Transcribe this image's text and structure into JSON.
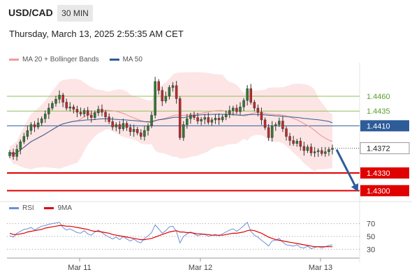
{
  "header": {
    "symbol": "USD/CAD",
    "timeframe": "30 MIN"
  },
  "datetime": "Thursday, March 13, 2025 2:55:35 AM CET",
  "legend_main": [
    {
      "label": "MA 20 + Bollinger Bands",
      "color": "#f19c9c"
    },
    {
      "label": "MA 50",
      "color": "#2e5c99"
    }
  ],
  "legend_rsi": [
    {
      "label": "RSI",
      "color": "#6a8fd8"
    },
    {
      "label": "9MA",
      "color": "#e00000"
    }
  ],
  "colors": {
    "bull": "#2e7d32",
    "bear": "#c62828",
    "resistance": "#8fbf5a",
    "pivot": "#2e5c99",
    "support": "#e00000",
    "arrow": "#2e5c99"
  },
  "chart_data": [
    {
      "type": "candlestick",
      "x_ticks": [
        "Mar 11",
        "Mar 12",
        "Mar 13"
      ],
      "ylim": [
        1.429,
        1.4505
      ],
      "levels": [
        {
          "value": 1.446,
          "label": "1.4460",
          "kind": "resistance"
        },
        {
          "value": 1.4435,
          "label": "1.4435",
          "kind": "resistance"
        },
        {
          "value": 1.441,
          "label": "1.4410",
          "kind": "pivot"
        },
        {
          "value": 1.4372,
          "label": "1.4372",
          "kind": "current"
        },
        {
          "value": 1.433,
          "label": "1.4330",
          "kind": "support"
        },
        {
          "value": 1.43,
          "label": "1.4300",
          "kind": "support"
        }
      ],
      "forecast": {
        "from": 1.4372,
        "to": 1.43,
        "direction": "down"
      },
      "close": [
        1.4365,
        1.4358,
        1.437,
        1.4383,
        1.4392,
        1.4402,
        1.4412,
        1.4408,
        1.4415,
        1.4422,
        1.443,
        1.444,
        1.4448,
        1.4455,
        1.4462,
        1.445,
        1.444,
        1.4442,
        1.4438,
        1.4433,
        1.443,
        1.4436,
        1.4428,
        1.4424,
        1.4432,
        1.4438,
        1.4433,
        1.4425,
        1.4417,
        1.4408,
        1.4412,
        1.4405,
        1.4414,
        1.4407,
        1.44,
        1.4404,
        1.4398,
        1.4392,
        1.4402,
        1.441,
        1.4428,
        1.4485,
        1.447,
        1.4452,
        1.446,
        1.4475,
        1.4478,
        1.4456,
        1.439,
        1.4412,
        1.4422,
        1.4428,
        1.4424,
        1.4418,
        1.4421,
        1.4424,
        1.4416,
        1.442,
        1.4423,
        1.442,
        1.4425,
        1.443,
        1.4436,
        1.444,
        1.4434,
        1.4442,
        1.4453,
        1.4473,
        1.445,
        1.444,
        1.4433,
        1.442,
        1.4407,
        1.439,
        1.441,
        1.4412,
        1.4418,
        1.4405,
        1.4392,
        1.4385,
        1.438,
        1.4384,
        1.4375,
        1.4368,
        1.4374,
        1.4364,
        1.4366,
        1.4368,
        1.4363,
        1.4366,
        1.437,
        1.4372
      ]
    },
    {
      "type": "line",
      "title": "RSI",
      "ylim": [
        25,
        75
      ],
      "y_ticks": [
        70,
        50,
        30
      ],
      "series": [
        {
          "name": "RSI",
          "values": [
            51,
            49,
            55,
            58,
            61,
            62,
            64,
            60,
            63,
            66,
            67,
            69,
            70,
            71,
            72,
            64,
            60,
            62,
            59,
            56,
            55,
            59,
            54,
            52,
            57,
            60,
            56,
            52,
            49,
            46,
            49,
            45,
            50,
            46,
            43,
            46,
            42,
            40,
            47,
            51,
            56,
            68,
            62,
            55,
            59,
            65,
            66,
            58,
            40,
            50,
            54,
            57,
            54,
            51,
            53,
            54,
            50,
            52,
            53,
            51,
            54,
            57,
            60,
            62,
            58,
            62,
            67,
            72,
            58,
            52,
            49,
            44,
            40,
            35,
            43,
            44,
            47,
            41,
            37,
            36,
            35,
            37,
            33,
            32,
            35,
            31,
            33,
            34,
            32,
            34,
            36,
            37
          ]
        },
        {
          "name": "9MA",
          "values": [
            55,
            53,
            53,
            54,
            55,
            57,
            58,
            59,
            60,
            61,
            63,
            64,
            65,
            66,
            67,
            67,
            66,
            66,
            65,
            64,
            63,
            62,
            61,
            59,
            58,
            58,
            57,
            56,
            55,
            53,
            52,
            51,
            50,
            49,
            48,
            47,
            46,
            45,
            45,
            46,
            47,
            49,
            51,
            53,
            55,
            57,
            58,
            59,
            57,
            57,
            56,
            56,
            55,
            54,
            54,
            53,
            53,
            52,
            52,
            52,
            52,
            53,
            54,
            55,
            55,
            56,
            57,
            59,
            60,
            59,
            57,
            55,
            52,
            49,
            47,
            45,
            44,
            43,
            42,
            41,
            40,
            39,
            38,
            37,
            36,
            35,
            34,
            34,
            34,
            34,
            34,
            34
          ]
        }
      ]
    }
  ]
}
